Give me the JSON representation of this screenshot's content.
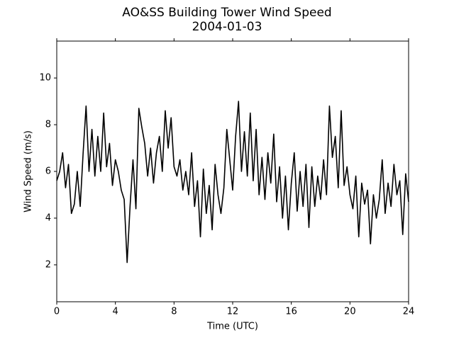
{
  "chart_data": {
    "type": "line",
    "title": "AO&SS Building Tower Wind Speed",
    "subtitle": "2004-01-03",
    "x_label": "Time (UTC)",
    "y_label": "Wind Speed (m/s)",
    "x": [
      0,
      0.2,
      0.4,
      0.6,
      0.8,
      1,
      1.2,
      1.4,
      1.6,
      1.8,
      2,
      2.2,
      2.4,
      2.6,
      2.8,
      3,
      3.2,
      3.4,
      3.6,
      3.8,
      4,
      4.2,
      4.4,
      4.6,
      4.8,
      5,
      5.2,
      5.4,
      5.6,
      5.8,
      6,
      6.2,
      6.4,
      6.6,
      6.8,
      7,
      7.2,
      7.4,
      7.6,
      7.8,
      8,
      8.2,
      8.4,
      8.6,
      8.8,
      9,
      9.2,
      9.4,
      9.6,
      9.8,
      10,
      10.2,
      10.4,
      10.6,
      10.8,
      11,
      11.2,
      11.4,
      11.6,
      11.8,
      12,
      12.2,
      12.4,
      12.6,
      12.8,
      13,
      13.2,
      13.4,
      13.6,
      13.8,
      14,
      14.2,
      14.4,
      14.6,
      14.8,
      15,
      15.2,
      15.4,
      15.6,
      15.8,
      16,
      16.2,
      16.4,
      16.6,
      16.8,
      17,
      17.2,
      17.4,
      17.6,
      17.8,
      18,
      18.2,
      18.4,
      18.6,
      18.8,
      19,
      19.2,
      19.4,
      19.6,
      19.8,
      20,
      20.2,
      20.4,
      20.6,
      20.8,
      21,
      21.2,
      21.4,
      21.6,
      21.8,
      22,
      22.2,
      22.4,
      22.6,
      22.8,
      23,
      23.2,
      23.4,
      23.6,
      23.8,
      24
    ],
    "series": [
      {
        "name": "Wind Speed",
        "color": "#000000",
        "values": [
          5.6,
          6.0,
          6.8,
          5.3,
          6.3,
          4.2,
          4.6,
          6.0,
          4.5,
          6.8,
          8.8,
          6.0,
          7.8,
          5.8,
          7.5,
          6.0,
          8.5,
          6.2,
          7.2,
          5.4,
          6.5,
          6.0,
          5.2,
          4.8,
          2.1,
          4.5,
          6.5,
          4.4,
          8.7,
          7.9,
          7.2,
          5.8,
          7.0,
          5.5,
          6.8,
          7.5,
          6.0,
          8.6,
          7.0,
          8.3,
          6.2,
          5.8,
          6.5,
          5.2,
          6.0,
          5.0,
          6.8,
          4.5,
          5.6,
          3.2,
          6.1,
          4.2,
          5.4,
          3.5,
          6.3,
          5.0,
          4.2,
          5.3,
          7.8,
          6.5,
          5.2,
          7.5,
          9.0,
          6.0,
          7.7,
          5.8,
          8.5,
          5.6,
          7.8,
          5.0,
          6.6,
          4.8,
          6.8,
          5.5,
          7.6,
          4.7,
          6.2,
          4.0,
          5.8,
          3.5,
          5.5,
          6.8,
          4.3,
          6.0,
          4.5,
          6.3,
          3.6,
          6.2,
          4.5,
          5.8,
          4.8,
          6.5,
          5.0,
          8.8,
          6.6,
          7.5,
          5.3,
          8.6,
          5.4,
          6.2,
          5.0,
          4.4,
          5.8,
          3.2,
          5.5,
          4.6,
          5.2,
          2.9,
          5.0,
          4.0,
          4.8,
          6.5,
          4.2,
          5.5,
          4.5,
          6.3,
          5.0,
          5.6,
          3.3,
          5.9,
          4.7
        ]
      }
    ],
    "xlim": [
      0,
      24
    ],
    "xticks": [
      0,
      4,
      8,
      12,
      16,
      20,
      24
    ],
    "ylim": [
      0.42,
      11.58
    ],
    "yticks": [
      2,
      4,
      6,
      8,
      10
    ],
    "grid": false
  }
}
